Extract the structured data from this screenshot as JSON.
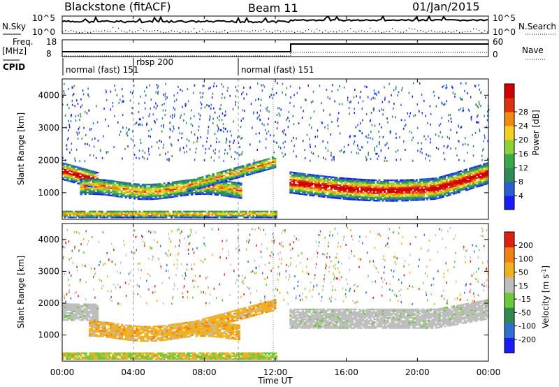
{
  "header": {
    "station": "Blackstone (fitACF)",
    "beam": "Beam 11",
    "date": "01/Jan/2015"
  },
  "panels": {
    "nsky": {
      "label": "N.Sky",
      "ticks": [
        "10^5",
        "10^0"
      ],
      "right_label": "N.Search",
      "right_ticks": [
        "10^5",
        "10^0"
      ]
    },
    "freq": {
      "label": "Freq.",
      "unit": "[MHz]",
      "ticks": [
        "18",
        "8"
      ],
      "right_label": "Nave",
      "right_ticks": [
        "60",
        "0"
      ]
    },
    "cpid": {
      "label": "CPID",
      "segments": [
        {
          "name": "normal (fast) 151",
          "start_hour": 0
        },
        {
          "name": "rbsp 200",
          "start_hour": 4
        },
        {
          "name": "normal (fast) 151",
          "start_hour": 10
        }
      ]
    }
  },
  "chart_data": [
    {
      "type": "heatmap",
      "title": "Power",
      "ylabel": "Slant Range [km]",
      "y_ticks": [
        "1000",
        "2000",
        "3000",
        "4000"
      ],
      "ylim": [
        180,
        4500
      ],
      "colorbar": {
        "label": "Power [dB]",
        "ticks": [
          "4",
          "8",
          "12",
          "16",
          "20",
          "24",
          "28"
        ],
        "range": [
          0,
          32
        ]
      }
    },
    {
      "type": "heatmap",
      "title": "Velocity",
      "ylabel": "Slant Range [km]",
      "y_ticks": [
        "1000",
        "2000",
        "3000",
        "4000"
      ],
      "ylim": [
        180,
        4500
      ],
      "colorbar": {
        "label": "Velocity [m s",
        "label_sup": "-1",
        "label_end": "]",
        "ticks": [
          "200",
          "100",
          "50",
          "15",
          "-15",
          "-50",
          "-100",
          "-200"
        ]
      }
    }
  ],
  "x_axis": {
    "label": "Time UT",
    "ticks": [
      "00:00",
      "04:00",
      "08:00",
      "12:00",
      "16:00",
      "20:00",
      "00:00"
    ],
    "range_hours": [
      0,
      24
    ]
  },
  "colors": {
    "power": [
      "#1a1aff",
      "#2a5fcf",
      "#2f8a5a",
      "#3aa84a",
      "#8fd13a",
      "#f0d020",
      "#f08a10",
      "#e03010",
      "#d00000"
    ],
    "velocity": [
      "#1a1aff",
      "#2f6fd0",
      "#2e8a4e",
      "#6cc93a",
      "#bebebe",
      "#f0b020",
      "#f08010",
      "#e02010"
    ]
  }
}
